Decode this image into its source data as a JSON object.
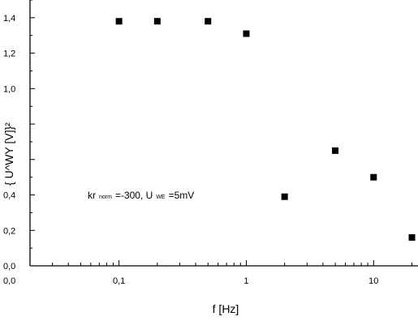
{
  "chart_data": {
    "type": "scatter",
    "title": "",
    "xlabel": "f [Hz]",
    "ylabel": "{ U^WY [V]}²",
    "x_scale": "log",
    "xlim": [
      0.02,
      22
    ],
    "ylim": [
      0.0,
      1.5
    ],
    "x_tick_values": [
      0.1,
      1,
      10
    ],
    "x_tick_labels": [
      "0,1",
      "1",
      "10"
    ],
    "y_tick_values": [
      0.0,
      0.2,
      0.4,
      1.0,
      1.2,
      1.4
    ],
    "y_tick_labels": [
      "0,0",
      "0,2",
      "0,4",
      "1,0",
      "1,2",
      "1,4"
    ],
    "marker": "square",
    "color": "#000000",
    "grid": false,
    "points": [
      {
        "x": 0.1,
        "y": 1.38
      },
      {
        "x": 0.2,
        "y": 1.38
      },
      {
        "x": 0.5,
        "y": 1.38
      },
      {
        "x": 1.0,
        "y": 1.31
      },
      {
        "x": 2.0,
        "y": 0.39
      },
      {
        "x": 5.0,
        "y": 0.65
      },
      {
        "x": 10.0,
        "y": 0.5
      },
      {
        "x": 20.0,
        "y": 0.16
      }
    ],
    "annotation": {
      "prefix": "kr",
      "prefix_sub": "norm",
      "middle": "=-300, U",
      "middle_sub": "WE",
      "suffix": "=5mV"
    }
  }
}
